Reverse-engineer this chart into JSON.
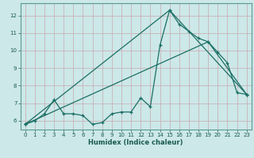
{
  "title": "",
  "xlabel": "Humidex (Indice chaleur)",
  "ylabel": "",
  "bg_color": "#cce8e8",
  "grid_color": "#b8d8d8",
  "line_color": "#1a6e64",
  "xlim": [
    -0.5,
    23.5
  ],
  "ylim": [
    5.5,
    12.7
  ],
  "xticks": [
    0,
    1,
    2,
    3,
    4,
    5,
    6,
    7,
    8,
    9,
    10,
    11,
    12,
    13,
    14,
    15,
    16,
    17,
    18,
    19,
    20,
    21,
    22,
    23
  ],
  "yticks": [
    6,
    7,
    8,
    9,
    10,
    11,
    12
  ],
  "series1_x": [
    0,
    1,
    2,
    3,
    4,
    5,
    6,
    7,
    8,
    9,
    10,
    11,
    12,
    13,
    14,
    15,
    16,
    17,
    18,
    19,
    20,
    21,
    22,
    23
  ],
  "series1_y": [
    5.8,
    6.0,
    6.4,
    7.2,
    6.4,
    6.4,
    6.3,
    5.8,
    5.9,
    6.4,
    6.5,
    6.5,
    7.3,
    6.8,
    10.3,
    12.3,
    11.5,
    11.1,
    10.7,
    10.5,
    9.9,
    9.3,
    7.6,
    7.5
  ],
  "series2_x": [
    0,
    15,
    23
  ],
  "series2_y": [
    5.8,
    12.3,
    7.5
  ],
  "series3_x": [
    0,
    19,
    23
  ],
  "series3_y": [
    5.8,
    10.5,
    7.5
  ]
}
